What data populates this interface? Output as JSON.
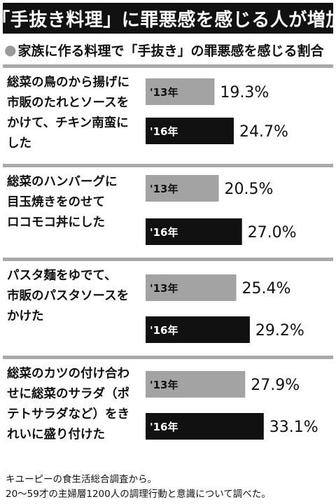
{
  "title": "「手抜き料理」に罪悪感を感じる人が増加",
  "subtitle_bullet": "●",
  "subtitle": "家族に作る料理で「手抜き」の罪悪感を感じる割合",
  "colors": {
    "bar_2013": "#a3a3a3",
    "bar_2016": "#111111",
    "divider": "#a9a9a9"
  },
  "chart_data": {
    "type": "bar",
    "orientation": "horizontal",
    "title": "家族に作る料理で「手抜き」の罪悪感を感じる割合",
    "categories": [
      "総菜の鳥のから揚げに\n市販のたれとソースを\nかけて、チキン南蛮に\nした",
      "総菜のハンバーグに\n目玉焼きをのせて\nロコモコ丼にした",
      "パスタ麺をゆでて、\n市販のパスタソースを\nかけた",
      "総菜のカツの付け合わ\nせに総菜のサラダ（ポ\nテトサラダなど）をき\nれいに盛り付けた"
    ],
    "series": [
      {
        "name": "'13年",
        "values": [
          19.3,
          20.5,
          25.4,
          27.9
        ],
        "labels": [
          "19.3%",
          "20.5%",
          "25.4%",
          "27.9%"
        ]
      },
      {
        "name": "'16年",
        "values": [
          24.7,
          27.0,
          29.2,
          33.1
        ],
        "labels": [
          "24.7%",
          "27.0%",
          "29.2%",
          "33.1%"
        ]
      }
    ],
    "unit": "%"
  },
  "footer": [
    "キユーピーの食生活総合調査から。",
    "20～59才の主婦層1200人の調理行動と意識について調べた。"
  ]
}
